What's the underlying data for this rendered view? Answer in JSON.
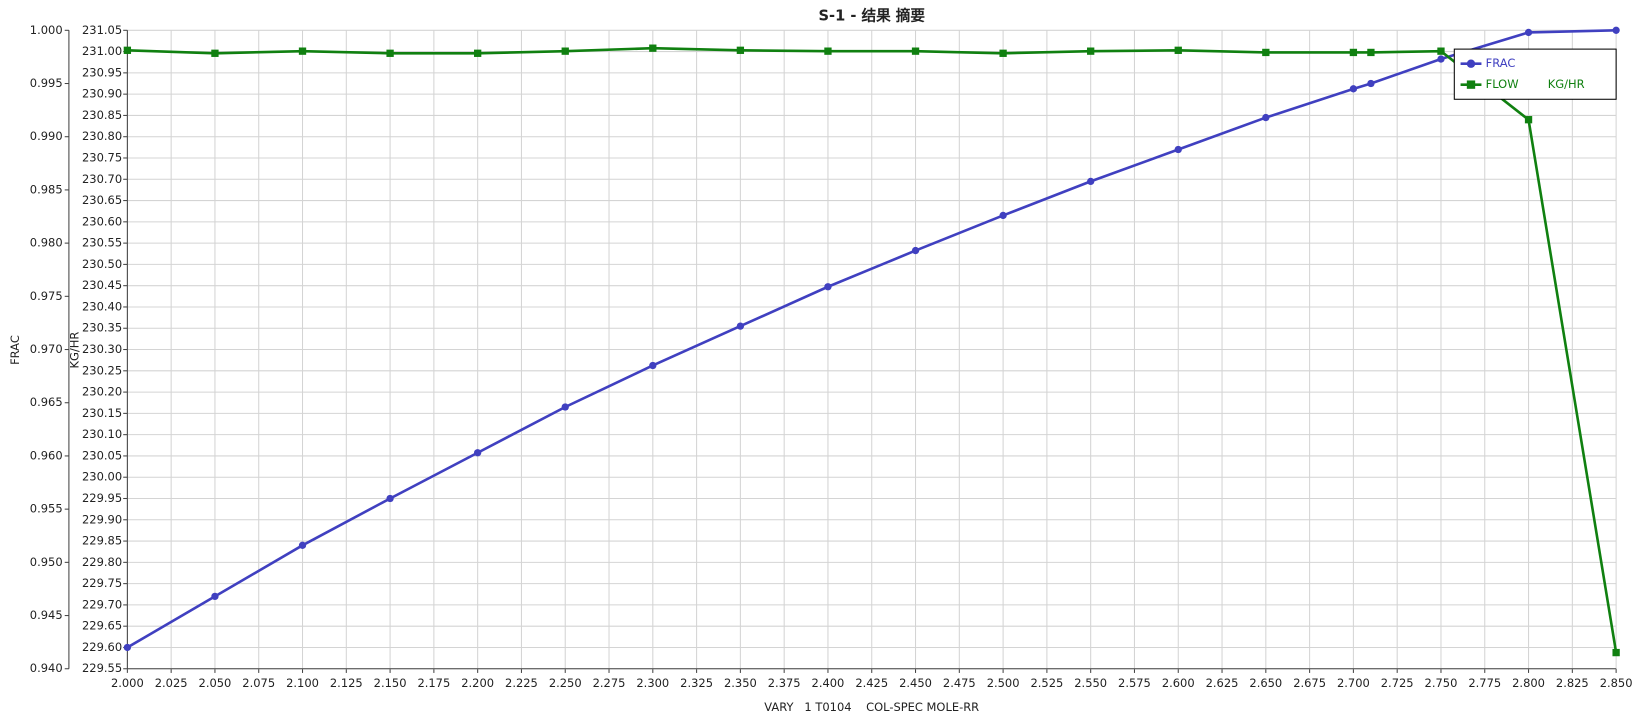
{
  "chart_data": {
    "type": "line",
    "title": "S-1 - 结果 摘要",
    "x_label": "VARY   1 T0104    COL-SPEC MOLE-RR",
    "y_label": "FRAC",
    "y2_label": "KG/HR",
    "grid": true,
    "legend": "upper right",
    "x": [
      2.0,
      2.05,
      2.1,
      2.15,
      2.2,
      2.25,
      2.3,
      2.35,
      2.4,
      2.45,
      2.5,
      2.55,
      2.6,
      2.65,
      2.7,
      2.71,
      2.75,
      2.8,
      2.85
    ],
    "series": [
      {
        "name": "FRAC",
        "color": "#4040c0",
        "marker": "circle",
        "values": [
          0.942,
          0.9468,
          0.9516,
          0.956,
          0.9603,
          0.9646,
          0.9685,
          0.9722,
          0.9759,
          0.9793,
          0.9826,
          0.9858,
          0.9888,
          0.9918,
          0.9945,
          0.995,
          0.9973,
          0.9998,
          1.0
        ]
      },
      {
        "name": "FLOW        KG/HR",
        "color": "#108010",
        "marker": "square",
        "axis": "y2",
        "values": [
          231.003,
          230.996,
          231.001,
          230.996,
          230.996,
          231.001,
          231.008,
          231.003,
          231.001,
          231.001,
          230.996,
          231.001,
          231.003,
          230.998,
          230.998,
          230.998,
          231.001,
          230.84,
          229.588
        ]
      }
    ],
    "xlim": [
      2.0,
      2.85
    ],
    "xticks": [
      {
        "value": 2.0,
        "label": "2.000"
      },
      2.025,
      {
        "value": 2.05,
        "label": "2.050"
      },
      2.075,
      {
        "value": 2.1,
        "label": "2.100"
      },
      2.125,
      {
        "value": 2.15,
        "label": "2.150"
      },
      2.175,
      {
        "value": 2.2,
        "label": "2.200"
      },
      2.225,
      {
        "value": 2.25,
        "label": "2.250"
      },
      2.275,
      {
        "value": 2.3,
        "label": "2.300"
      },
      2.325,
      {
        "value": 2.35,
        "label": "2.350"
      },
      2.375,
      {
        "value": 2.4,
        "label": "2.400"
      },
      2.425,
      {
        "value": 2.45,
        "label": "2.450"
      },
      2.475,
      {
        "value": 2.5,
        "label": "2.500"
      },
      2.525,
      {
        "value": 2.55,
        "label": "2.550"
      },
      2.575,
      {
        "value": 2.6,
        "label": "2.600"
      },
      2.625,
      {
        "value": 2.65,
        "label": "2.650"
      },
      2.675,
      {
        "value": 2.7,
        "label": "2.700"
      },
      2.725,
      {
        "value": 2.75,
        "label": "2.750"
      },
      2.775,
      {
        "value": 2.8,
        "label": "2.800"
      },
      2.825,
      {
        "value": 2.85,
        "label": "2.850"
      }
    ],
    "ylim": [
      0.94,
      1.0
    ],
    "yticks": [
      {
        "value": 0.94,
        "label": "0.940"
      },
      0.945,
      {
        "value": 0.95,
        "label": "0.950"
      },
      0.955,
      {
        "value": 0.96,
        "label": "0.960"
      },
      0.965,
      {
        "value": 0.97,
        "label": "0.970"
      },
      0.975,
      {
        "value": 0.98,
        "label": "0.980"
      },
      0.985,
      {
        "value": 0.99,
        "label": "0.990"
      },
      0.995,
      {
        "value": 1.0,
        "label": "1.000"
      }
    ],
    "y2lim": [
      229.55,
      231.05
    ],
    "y2ticks": [
      229.55,
      {
        "value": 229.6,
        "label": "229.60"
      },
      229.65,
      {
        "value": 229.7,
        "label": "229.70"
      },
      229.75,
      {
        "value": 229.8,
        "label": "229.80"
      },
      229.85,
      {
        "value": 229.9,
        "label": "229.90"
      },
      229.95,
      {
        "value": 230.0,
        "label": "230.00"
      },
      230.05,
      {
        "value": 230.1,
        "label": "230.10"
      },
      230.15,
      {
        "value": 230.2,
        "label": "230.20"
      },
      230.25,
      {
        "value": 230.3,
        "label": "230.30"
      },
      230.35,
      {
        "value": 230.4,
        "label": "230.40"
      },
      230.45,
      {
        "value": 230.5,
        "label": "230.50"
      },
      230.55,
      {
        "value": 230.6,
        "label": "230.60"
      },
      230.65,
      {
        "value": 230.7,
        "label": "230.70"
      },
      230.75,
      {
        "value": 230.8,
        "label": "230.80"
      },
      230.85,
      {
        "value": 230.9,
        "label": "230.90"
      },
      230.95,
      {
        "value": 231.0,
        "label": "231.00"
      },
      231.05
    ]
  }
}
